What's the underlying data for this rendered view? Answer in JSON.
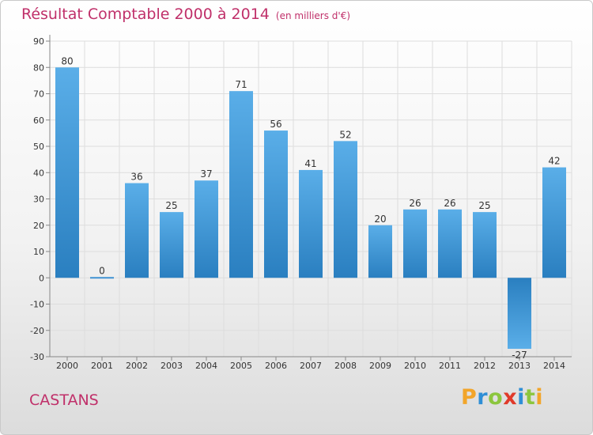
{
  "header": {
    "title": "Résultat Comptable 2000 à 2014",
    "unit": "(en milliers d'€)"
  },
  "commune": "CASTANS",
  "logo": {
    "text": "Proxiti",
    "letters": [
      "P",
      "r",
      "o",
      "x",
      "i",
      "t",
      "i"
    ],
    "colors": [
      "#f2a52a",
      "#2f8fd6",
      "#8cc63e",
      "#e03a2a",
      "#2f8fd6",
      "#8cc63e",
      "#f2a52a"
    ]
  },
  "chart_data": {
    "type": "bar",
    "title": "Résultat Comptable 2000 à 2014",
    "subtitle": "(en milliers d'€)",
    "categories": [
      "2000",
      "2001",
      "2002",
      "2003",
      "2004",
      "2005",
      "2006",
      "2007",
      "2008",
      "2009",
      "2010",
      "2011",
      "2012",
      "2013",
      "2014"
    ],
    "values": [
      80,
      0,
      36,
      25,
      37,
      71,
      56,
      41,
      52,
      20,
      26,
      26,
      25,
      -27,
      42
    ],
    "ylim": [
      -30,
      90
    ],
    "yticks": [
      -30,
      -20,
      -10,
      0,
      10,
      20,
      30,
      40,
      50,
      60,
      70,
      80,
      90
    ],
    "grid": true,
    "bar_color_top": "#5aaee8",
    "bar_color_bottom": "#2a7fc0"
  }
}
